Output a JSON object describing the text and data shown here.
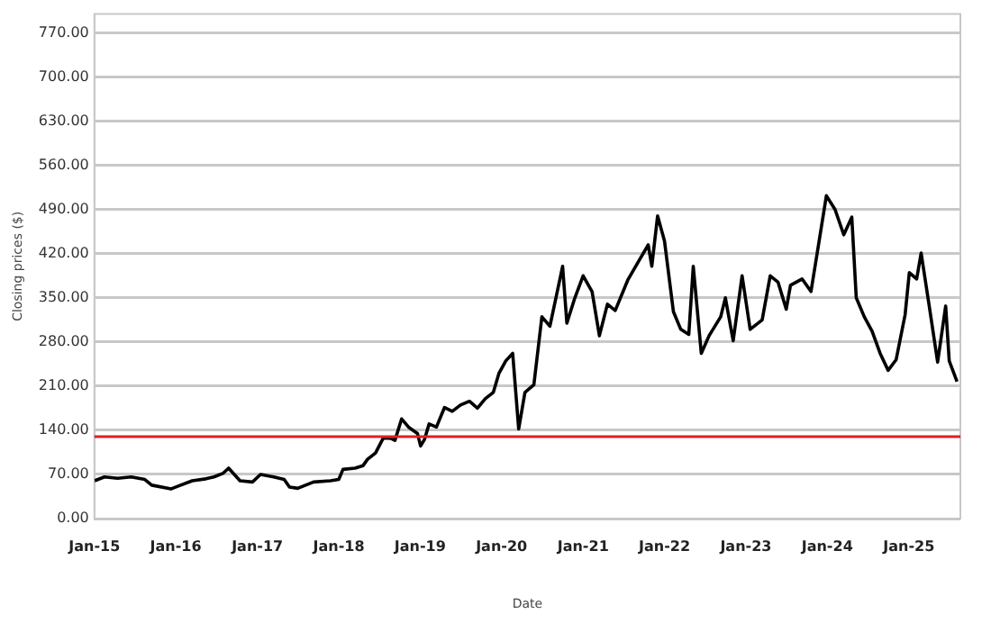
{
  "chart_data": {
    "type": "line",
    "xlabel": "Date",
    "ylabel": "Closing prices ($)",
    "xlim": [
      "2015-01-01",
      "2025-08-20"
    ],
    "xticks": [
      {
        "value": "2015-01-01",
        "label": "Jan-15"
      },
      {
        "value": "2016-01-01",
        "label": "Jan-16"
      },
      {
        "value": "2017-01-01",
        "label": "Jan-17"
      },
      {
        "value": "2018-01-01",
        "label": "Jan-18"
      },
      {
        "value": "2019-01-01",
        "label": "Jan-19"
      },
      {
        "value": "2020-01-01",
        "label": "Jan-20"
      },
      {
        "value": "2021-01-01",
        "label": "Jan-21"
      },
      {
        "value": "2022-01-01",
        "label": "Jan-22"
      },
      {
        "value": "2023-01-01",
        "label": "Jan-23"
      },
      {
        "value": "2024-01-01",
        "label": "Jan-24"
      },
      {
        "value": "2025-01-01",
        "label": "Jan-25"
      }
    ],
    "ylim": [
      0,
      800
    ],
    "yticks": [
      {
        "value": 0,
        "label": "0.00"
      },
      {
        "value": 70,
        "label": "70.00"
      },
      {
        "value": 140,
        "label": "140.00"
      },
      {
        "value": 210,
        "label": "210.00"
      },
      {
        "value": 280,
        "label": "280.00"
      },
      {
        "value": 350,
        "label": "350.00"
      },
      {
        "value": 420,
        "label": "420.00"
      },
      {
        "value": 490,
        "label": "490.00"
      },
      {
        "value": 560,
        "label": "560.00"
      },
      {
        "value": 630,
        "label": "630.00"
      },
      {
        "value": 700,
        "label": "700.00"
      },
      {
        "value": 770,
        "label": "770.00"
      }
    ],
    "grid": "y",
    "legend": false,
    "marker": "none",
    "line_style": "solid",
    "ref_lines": [
      {
        "axis": "y",
        "value": 130,
        "color": "#e02020"
      }
    ],
    "x": [
      "2015-01-02",
      "2015-02-15",
      "2015-04-15",
      "2015-06-15",
      "2015-08-15",
      "2015-09-15",
      "2015-12-10",
      "2016-01-15",
      "2016-03-15",
      "2016-05-15",
      "2016-06-20",
      "2016-08-01",
      "2016-08-25",
      "2016-10-15",
      "2016-12-10",
      "2017-01-15",
      "2017-03-15",
      "2017-05-01",
      "2017-05-25",
      "2017-07-01",
      "2017-09-10",
      "2017-11-25",
      "2018-01-01",
      "2018-01-20",
      "2018-03-15",
      "2018-04-20",
      "2018-05-10",
      "2018-06-15",
      "2018-07-20",
      "2018-08-25",
      "2018-09-10",
      "2018-10-10",
      "2018-11-10",
      "2018-12-20",
      "2019-01-03",
      "2019-01-20",
      "2019-02-10",
      "2019-03-15",
      "2019-04-20",
      "2019-05-25",
      "2019-07-01",
      "2019-08-10",
      "2019-09-15",
      "2019-10-20",
      "2019-11-25",
      "2019-12-20",
      "2020-01-20",
      "2020-02-20",
      "2020-03-18",
      "2020-04-15",
      "2020-05-25",
      "2020-06-30",
      "2020-08-05",
      "2020-10-01",
      "2020-10-20",
      "2020-11-25",
      "2021-01-01",
      "2021-02-10",
      "2021-03-15",
      "2021-04-20",
      "2021-05-25",
      "2021-07-20",
      "2021-09-10",
      "2021-10-20",
      "2021-11-05",
      "2021-12-01",
      "2022-01-01",
      "2022-02-10",
      "2022-03-15",
      "2022-04-20",
      "2022-05-10",
      "2022-06-15",
      "2022-07-20",
      "2022-09-10",
      "2022-10-01",
      "2022-11-05",
      "2022-12-15",
      "2023-01-20",
      "2023-03-15",
      "2023-04-20",
      "2023-05-25",
      "2023-07-01",
      "2023-07-20",
      "2023-09-10",
      "2023-10-20",
      "2023-11-25",
      "2023-12-28",
      "2024-02-05",
      "2024-03-15",
      "2024-04-20",
      "2024-05-10",
      "2024-06-15",
      "2024-07-20",
      "2024-08-25",
      "2024-09-30",
      "2024-11-05",
      "2024-12-15",
      "2025-01-03",
      "2025-02-05",
      "2025-02-25",
      "2025-04-01",
      "2025-05-10",
      "2025-06-15",
      "2025-07-01",
      "2025-08-05"
    ],
    "series": [
      {
        "color": "#000000",
        "values": [
          60,
          66,
          64,
          66,
          62,
          53,
          47,
          52,
          60,
          63,
          66,
          72,
          80,
          60,
          58,
          70,
          66,
          62,
          50,
          48,
          58,
          60,
          62,
          78,
          80,
          84,
          94,
          104,
          128,
          127,
          124,
          158,
          145,
          135,
          115,
          125,
          150,
          145,
          176,
          170,
          180,
          186,
          175,
          190,
          200,
          230,
          250,
          262,
          142,
          200,
          212,
          320,
          305,
          400,
          310,
          350,
          385,
          360,
          290,
          340,
          330,
          378,
          410,
          434,
          400,
          480,
          440,
          328,
          300,
          292,
          400,
          262,
          290,
          320,
          350,
          282,
          385,
          300,
          315,
          385,
          375,
          332,
          370,
          380,
          360,
          439,
          512,
          490,
          450,
          478,
          350,
          320,
          297,
          262,
          235,
          252,
          323,
          390,
          380,
          421,
          340,
          248,
          337,
          250,
          217
        ]
      }
    ]
  }
}
